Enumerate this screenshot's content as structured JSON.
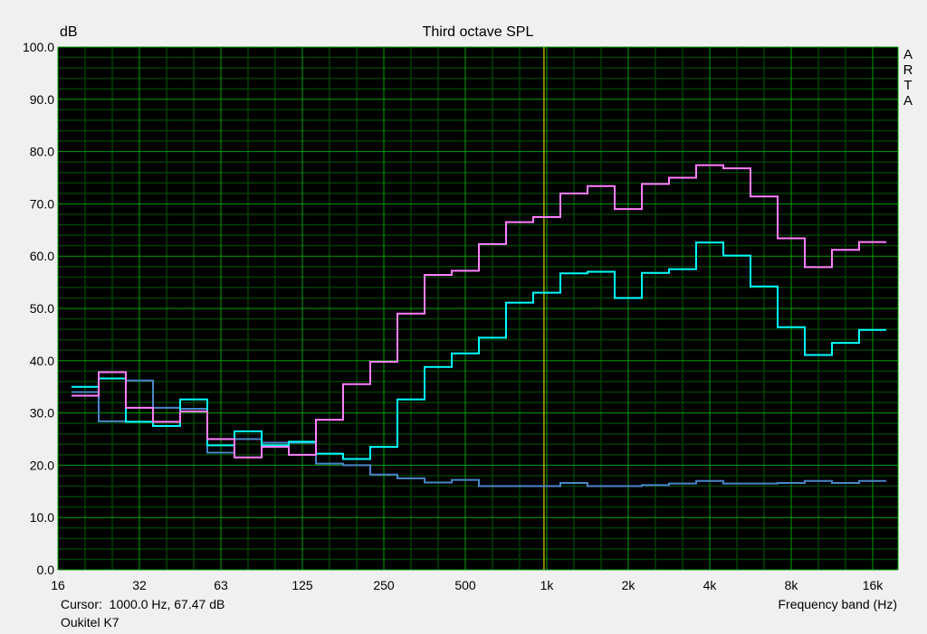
{
  "chart_data": {
    "type": "line",
    "step": true,
    "title": "Third octave SPL",
    "ylabel": "dB",
    "xlabel": "Frequency band (Hz)",
    "x_scale": "log",
    "xlim": [
      16,
      20000
    ],
    "ylim": [
      0,
      100
    ],
    "grid": true,
    "y_ticks": [
      "0.0",
      "10.0",
      "20.0",
      "30.0",
      "40.0",
      "50.0",
      "60.0",
      "70.0",
      "80.0",
      "90.0",
      "100.0"
    ],
    "x_ticks": [
      {
        "value": 16,
        "label": "16"
      },
      {
        "value": 31.5,
        "label": "32"
      },
      {
        "value": 63,
        "label": "63"
      },
      {
        "value": 125,
        "label": "125"
      },
      {
        "value": 250,
        "label": "250"
      },
      {
        "value": 500,
        "label": "500"
      },
      {
        "value": 1000,
        "label": "1k"
      },
      {
        "value": 2000,
        "label": "2k"
      },
      {
        "value": 4000,
        "label": "4k"
      },
      {
        "value": 8000,
        "label": "8k"
      },
      {
        "value": 16000,
        "label": "16k"
      }
    ],
    "bands": [
      20,
      25,
      31.5,
      40,
      50,
      63,
      80,
      100,
      125,
      160,
      200,
      250,
      315,
      400,
      500,
      630,
      800,
      1000,
      1250,
      1600,
      2000,
      2500,
      3150,
      4000,
      5000,
      6300,
      8000,
      10000,
      12500,
      16000
    ],
    "series": [
      {
        "color": "#4a86c8",
        "values": [
          34,
          28.4,
          36.2,
          31,
          30.8,
          22.4,
          25,
          24.3,
          24.3,
          20.3,
          20,
          18.2,
          17.5,
          16.7,
          17.2,
          16,
          16,
          16,
          16.6,
          16,
          16,
          16.2,
          16.5,
          17,
          16.5,
          16.5,
          16.6,
          17,
          16.6,
          17
        ]
      },
      {
        "color": "#00ffff",
        "values": [
          35,
          36.6,
          28.3,
          27.5,
          32.6,
          23.8,
          26.5,
          23.8,
          24.5,
          22.2,
          21.2,
          23.5,
          32.6,
          38.8,
          41.4,
          44.4,
          51.1,
          53,
          56.7,
          57,
          52,
          56.8,
          57.5,
          62.6,
          60.1,
          54.2,
          46.4,
          41.1,
          43.4,
          45.9
        ]
      },
      {
        "color": "#ff80ff",
        "values": [
          33.3,
          37.8,
          31,
          28.3,
          30.3,
          25,
          21.5,
          23.5,
          22,
          28.7,
          35.5,
          39.8,
          49,
          56.4,
          57.2,
          62.3,
          66.5,
          67.47,
          72,
          73.4,
          69,
          73.8,
          75,
          77.4,
          76.8,
          71.4,
          63.4,
          57.9,
          61.2,
          62.7
        ]
      }
    ],
    "cursor": {
      "frequency": 1000,
      "color": "#e0d000"
    },
    "colors": {
      "background": "#000000",
      "major_grid": "#00a000",
      "minor_grid": "#004000"
    }
  },
  "cursor_readout": "Cursor:  1000.0 Hz, 67.47 dB",
  "watermark": "ARTA",
  "device_label": "Oukitel K7"
}
